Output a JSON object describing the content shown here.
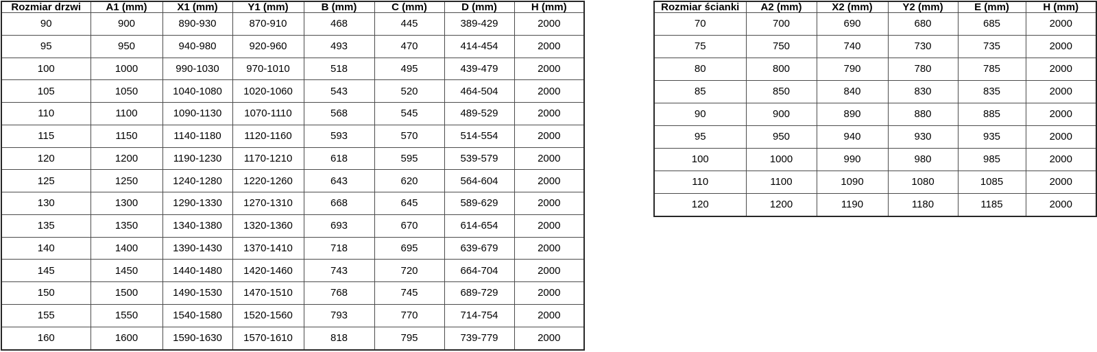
{
  "colors": {
    "background": "#ffffff",
    "text": "#000000",
    "grid_border": "#4a4a4a",
    "outer_border": "#262626"
  },
  "door_table": {
    "title": "Rozmiar drzwi",
    "headers": [
      "Rozmiar drzwi",
      "A1 (mm)",
      "X1 (mm)",
      "Y1 (mm)",
      "B (mm)",
      "C (mm)",
      "D (mm)",
      "H (mm)"
    ],
    "rows": [
      [
        "90",
        "900",
        "890-930",
        "870-910",
        "468",
        "445",
        "389-429",
        "2000"
      ],
      [
        "95",
        "950",
        "940-980",
        "920-960",
        "493",
        "470",
        "414-454",
        "2000"
      ],
      [
        "100",
        "1000",
        "990-1030",
        "970-1010",
        "518",
        "495",
        "439-479",
        "2000"
      ],
      [
        "105",
        "1050",
        "1040-1080",
        "1020-1060",
        "543",
        "520",
        "464-504",
        "2000"
      ],
      [
        "110",
        "1100",
        "1090-1130",
        "1070-1110",
        "568",
        "545",
        "489-529",
        "2000"
      ],
      [
        "115",
        "1150",
        "1140-1180",
        "1120-1160",
        "593",
        "570",
        "514-554",
        "2000"
      ],
      [
        "120",
        "1200",
        "1190-1230",
        "1170-1210",
        "618",
        "595",
        "539-579",
        "2000"
      ],
      [
        "125",
        "1250",
        "1240-1280",
        "1220-1260",
        "643",
        "620",
        "564-604",
        "2000"
      ],
      [
        "130",
        "1300",
        "1290-1330",
        "1270-1310",
        "668",
        "645",
        "589-629",
        "2000"
      ],
      [
        "135",
        "1350",
        "1340-1380",
        "1320-1360",
        "693",
        "670",
        "614-654",
        "2000"
      ],
      [
        "140",
        "1400",
        "1390-1430",
        "1370-1410",
        "718",
        "695",
        "639-679",
        "2000"
      ],
      [
        "145",
        "1450",
        "1440-1480",
        "1420-1460",
        "743",
        "720",
        "664-704",
        "2000"
      ],
      [
        "150",
        "1500",
        "1490-1530",
        "1470-1510",
        "768",
        "745",
        "689-729",
        "2000"
      ],
      [
        "155",
        "1550",
        "1540-1580",
        "1520-1560",
        "793",
        "770",
        "714-754",
        "2000"
      ],
      [
        "160",
        "1600",
        "1590-1630",
        "1570-1610",
        "818",
        "795",
        "739-779",
        "2000"
      ]
    ]
  },
  "wall_table": {
    "title": "Rozmiar ścianki",
    "headers": [
      "Rozmiar ścianki",
      "A2 (mm)",
      "X2 (mm)",
      "Y2 (mm)",
      "E (mm)",
      "H (mm)"
    ],
    "rows": [
      [
        "70",
        "700",
        "690",
        "680",
        "685",
        "2000"
      ],
      [
        "75",
        "750",
        "740",
        "730",
        "735",
        "2000"
      ],
      [
        "80",
        "800",
        "790",
        "780",
        "785",
        "2000"
      ],
      [
        "85",
        "850",
        "840",
        "830",
        "835",
        "2000"
      ],
      [
        "90",
        "900",
        "890",
        "880",
        "885",
        "2000"
      ],
      [
        "95",
        "950",
        "940",
        "930",
        "935",
        "2000"
      ],
      [
        "100",
        "1000",
        "990",
        "980",
        "985",
        "2000"
      ],
      [
        "110",
        "1100",
        "1090",
        "1080",
        "1085",
        "2000"
      ],
      [
        "120",
        "1200",
        "1190",
        "1180",
        "1185",
        "2000"
      ]
    ]
  }
}
